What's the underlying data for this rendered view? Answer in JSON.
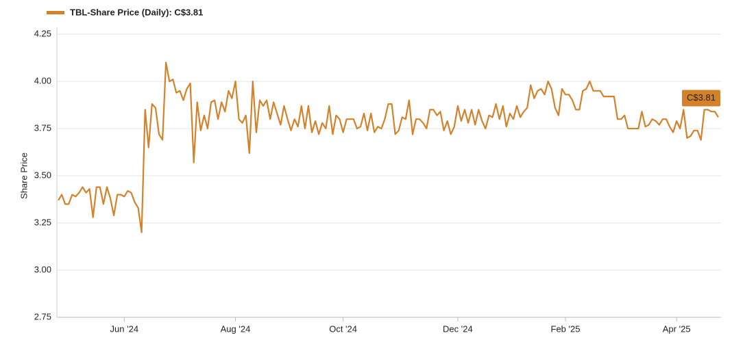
{
  "chart_data": {
    "type": "line",
    "ylabel": "Share Price",
    "annotation": {
      "text": "C$3.81"
    },
    "ylim": [
      2.75,
      4.25
    ],
    "yticks": [
      {
        "value": 2.75,
        "label": "2.75"
      },
      {
        "value": 3,
        "label": "3.00"
      },
      {
        "value": 3.25,
        "label": "3.25"
      },
      {
        "value": 3.5,
        "label": "3.50"
      },
      {
        "value": 3.75,
        "label": "3.75"
      },
      {
        "value": 4,
        "label": "4.00"
      },
      {
        "value": 4.25,
        "label": "4.25"
      }
    ],
    "grid": true,
    "legend": "top-left",
    "categories": [
      null,
      null,
      null,
      null,
      null,
      null,
      null,
      null,
      null,
      null,
      null,
      null,
      null,
      null,
      null,
      null,
      null,
      null,
      null,
      "Jun '24",
      null,
      null,
      null,
      null,
      null,
      null,
      null,
      null,
      null,
      null,
      null,
      null,
      null,
      null,
      null,
      null,
      null,
      null,
      null,
      null,
      null,
      null,
      null,
      null,
      null,
      null,
      null,
      null,
      null,
      null,
      null,
      "Aug '24",
      null,
      null,
      null,
      null,
      null,
      null,
      null,
      null,
      null,
      null,
      null,
      null,
      null,
      null,
      null,
      null,
      null,
      null,
      null,
      null,
      null,
      null,
      null,
      null,
      null,
      null,
      null,
      null,
      null,
      null,
      "Oct '24",
      null,
      null,
      null,
      null,
      null,
      null,
      null,
      null,
      null,
      null,
      null,
      null,
      null,
      null,
      null,
      null,
      null,
      null,
      null,
      null,
      null,
      null,
      null,
      null,
      null,
      null,
      null,
      null,
      null,
      null,
      null,
      null,
      "Dec '24",
      null,
      null,
      null,
      null,
      null,
      null,
      null,
      null,
      null,
      null,
      null,
      null,
      null,
      null,
      null,
      null,
      null,
      null,
      null,
      null,
      null,
      null,
      null,
      null,
      null,
      null,
      null,
      null,
      null,
      null,
      "Feb '25",
      null,
      null,
      null,
      null,
      null,
      null,
      null,
      null,
      null,
      null,
      null,
      null,
      null,
      null,
      null,
      null,
      null,
      null,
      null,
      null,
      null,
      null,
      null,
      null,
      null,
      null,
      null,
      null,
      null,
      null,
      null,
      "Apr '25",
      null,
      null,
      null,
      null,
      null,
      null,
      null,
      null,
      null,
      null,
      null,
      null
    ],
    "series": [
      {
        "name": "TBL-Share Price (Daily): C$3.81",
        "color": "#d4822a",
        "values": [
          3.37,
          3.4,
          3.35,
          3.35,
          3.4,
          3.39,
          3.41,
          3.44,
          3.41,
          3.43,
          3.28,
          3.44,
          3.44,
          3.35,
          3.44,
          3.38,
          3.29,
          3.4,
          3.4,
          3.39,
          3.42,
          3.41,
          3.36,
          3.33,
          3.2,
          3.85,
          3.65,
          3.88,
          3.86,
          3.72,
          3.69,
          4.1,
          4.0,
          4.01,
          3.94,
          3.95,
          3.9,
          3.96,
          3.99,
          3.57,
          3.89,
          3.74,
          3.82,
          3.75,
          3.89,
          3.9,
          3.8,
          3.89,
          3.84,
          3.95,
          3.91,
          4.0,
          3.8,
          3.78,
          3.82,
          3.62,
          4.0,
          3.73,
          3.9,
          3.87,
          3.9,
          3.8,
          3.89,
          3.83,
          3.77,
          3.87,
          3.8,
          3.74,
          3.8,
          3.76,
          3.87,
          3.75,
          3.87,
          3.73,
          3.79,
          3.72,
          3.78,
          3.75,
          3.87,
          3.72,
          3.82,
          3.8,
          3.73,
          3.8,
          3.8,
          3.8,
          3.75,
          3.76,
          3.83,
          3.74,
          3.83,
          3.73,
          3.76,
          3.75,
          3.8,
          3.88,
          3.88,
          3.72,
          3.74,
          3.81,
          3.8,
          3.9,
          3.72,
          3.8,
          3.8,
          3.78,
          3.75,
          3.85,
          3.85,
          3.82,
          3.84,
          3.74,
          3.79,
          3.72,
          3.76,
          3.87,
          3.79,
          3.85,
          3.78,
          3.85,
          3.77,
          3.85,
          3.79,
          3.75,
          3.82,
          3.81,
          3.88,
          3.8,
          3.87,
          3.76,
          3.83,
          3.8,
          3.87,
          3.81,
          3.84,
          3.86,
          3.98,
          3.91,
          3.95,
          3.96,
          3.93,
          4.0,
          3.96,
          3.86,
          3.82,
          3.96,
          3.93,
          3.93,
          3.9,
          3.85,
          3.85,
          3.95,
          3.96,
          4.0,
          3.95,
          3.95,
          3.95,
          3.92,
          3.92,
          3.92,
          3.92,
          3.8,
          3.8,
          3.82,
          3.75,
          3.75,
          3.75,
          3.75,
          3.84,
          3.76,
          3.77,
          3.8,
          3.79,
          3.77,
          3.8,
          3.8,
          3.76,
          3.73,
          3.79,
          3.75,
          3.85,
          3.7,
          3.71,
          3.74,
          3.74,
          3.69,
          3.85,
          3.85,
          3.84,
          3.84,
          3.81
        ]
      }
    ]
  }
}
